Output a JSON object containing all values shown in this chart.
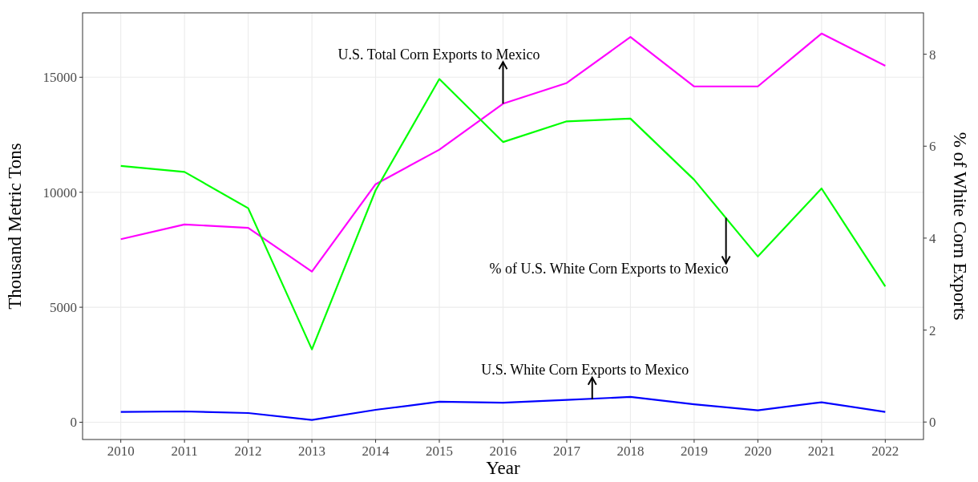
{
  "chart_data": {
    "type": "line",
    "xlabel": "Year",
    "ylabel": "Thousand Metric Tons",
    "y2label": "% of White Corn Exports",
    "x": [
      2010,
      2011,
      2012,
      2013,
      2014,
      2015,
      2016,
      2017,
      2018,
      2019,
      2020,
      2021,
      2022
    ],
    "xlim": [
      2009.4,
      2022.6
    ],
    "xticks": [
      2010,
      2011,
      2012,
      2013,
      2014,
      2015,
      2016,
      2017,
      2018,
      2019,
      2020,
      2021,
      2022
    ],
    "ylim": [
      -750,
      17800
    ],
    "yticks": [
      0,
      5000,
      10000,
      15000
    ],
    "y2lim": [
      -0.38,
      8.9
    ],
    "y2ticks": [
      0,
      2,
      4,
      6,
      8
    ],
    "grid": true,
    "line_style": "solid",
    "marker": "none",
    "series": [
      {
        "color": "#ff00ff",
        "values": [
          7960,
          8600,
          8450,
          6550,
          10350,
          11850,
          13850,
          14750,
          16750,
          14600,
          14600,
          16900,
          15500
        ]
      },
      {
        "color": "#00ff00",
        "axis": "y2",
        "values": [
          5.57,
          5.44,
          4.65,
          1.58,
          5.04,
          7.46,
          6.09,
          6.54,
          6.6,
          5.27,
          3.6,
          5.08,
          2.95
        ]
      },
      {
        "color": "#0000ff",
        "values": [
          450,
          470,
          400,
          100,
          540,
          890,
          850,
          970,
          1100,
          780,
          520,
          870,
          450
        ]
      }
    ],
    "annotations": [
      {
        "text": "U.S. Total Corn Exports to Mexico",
        "x": 2016,
        "y": 13850
      },
      {
        "text": "% of U.S. White Corn Exports to Mexico",
        "x": 2019.5,
        "y": 8890
      },
      {
        "text": "U.S. White Corn Exports to Mexico",
        "x": 2017.4,
        "y": 1000
      }
    ]
  }
}
